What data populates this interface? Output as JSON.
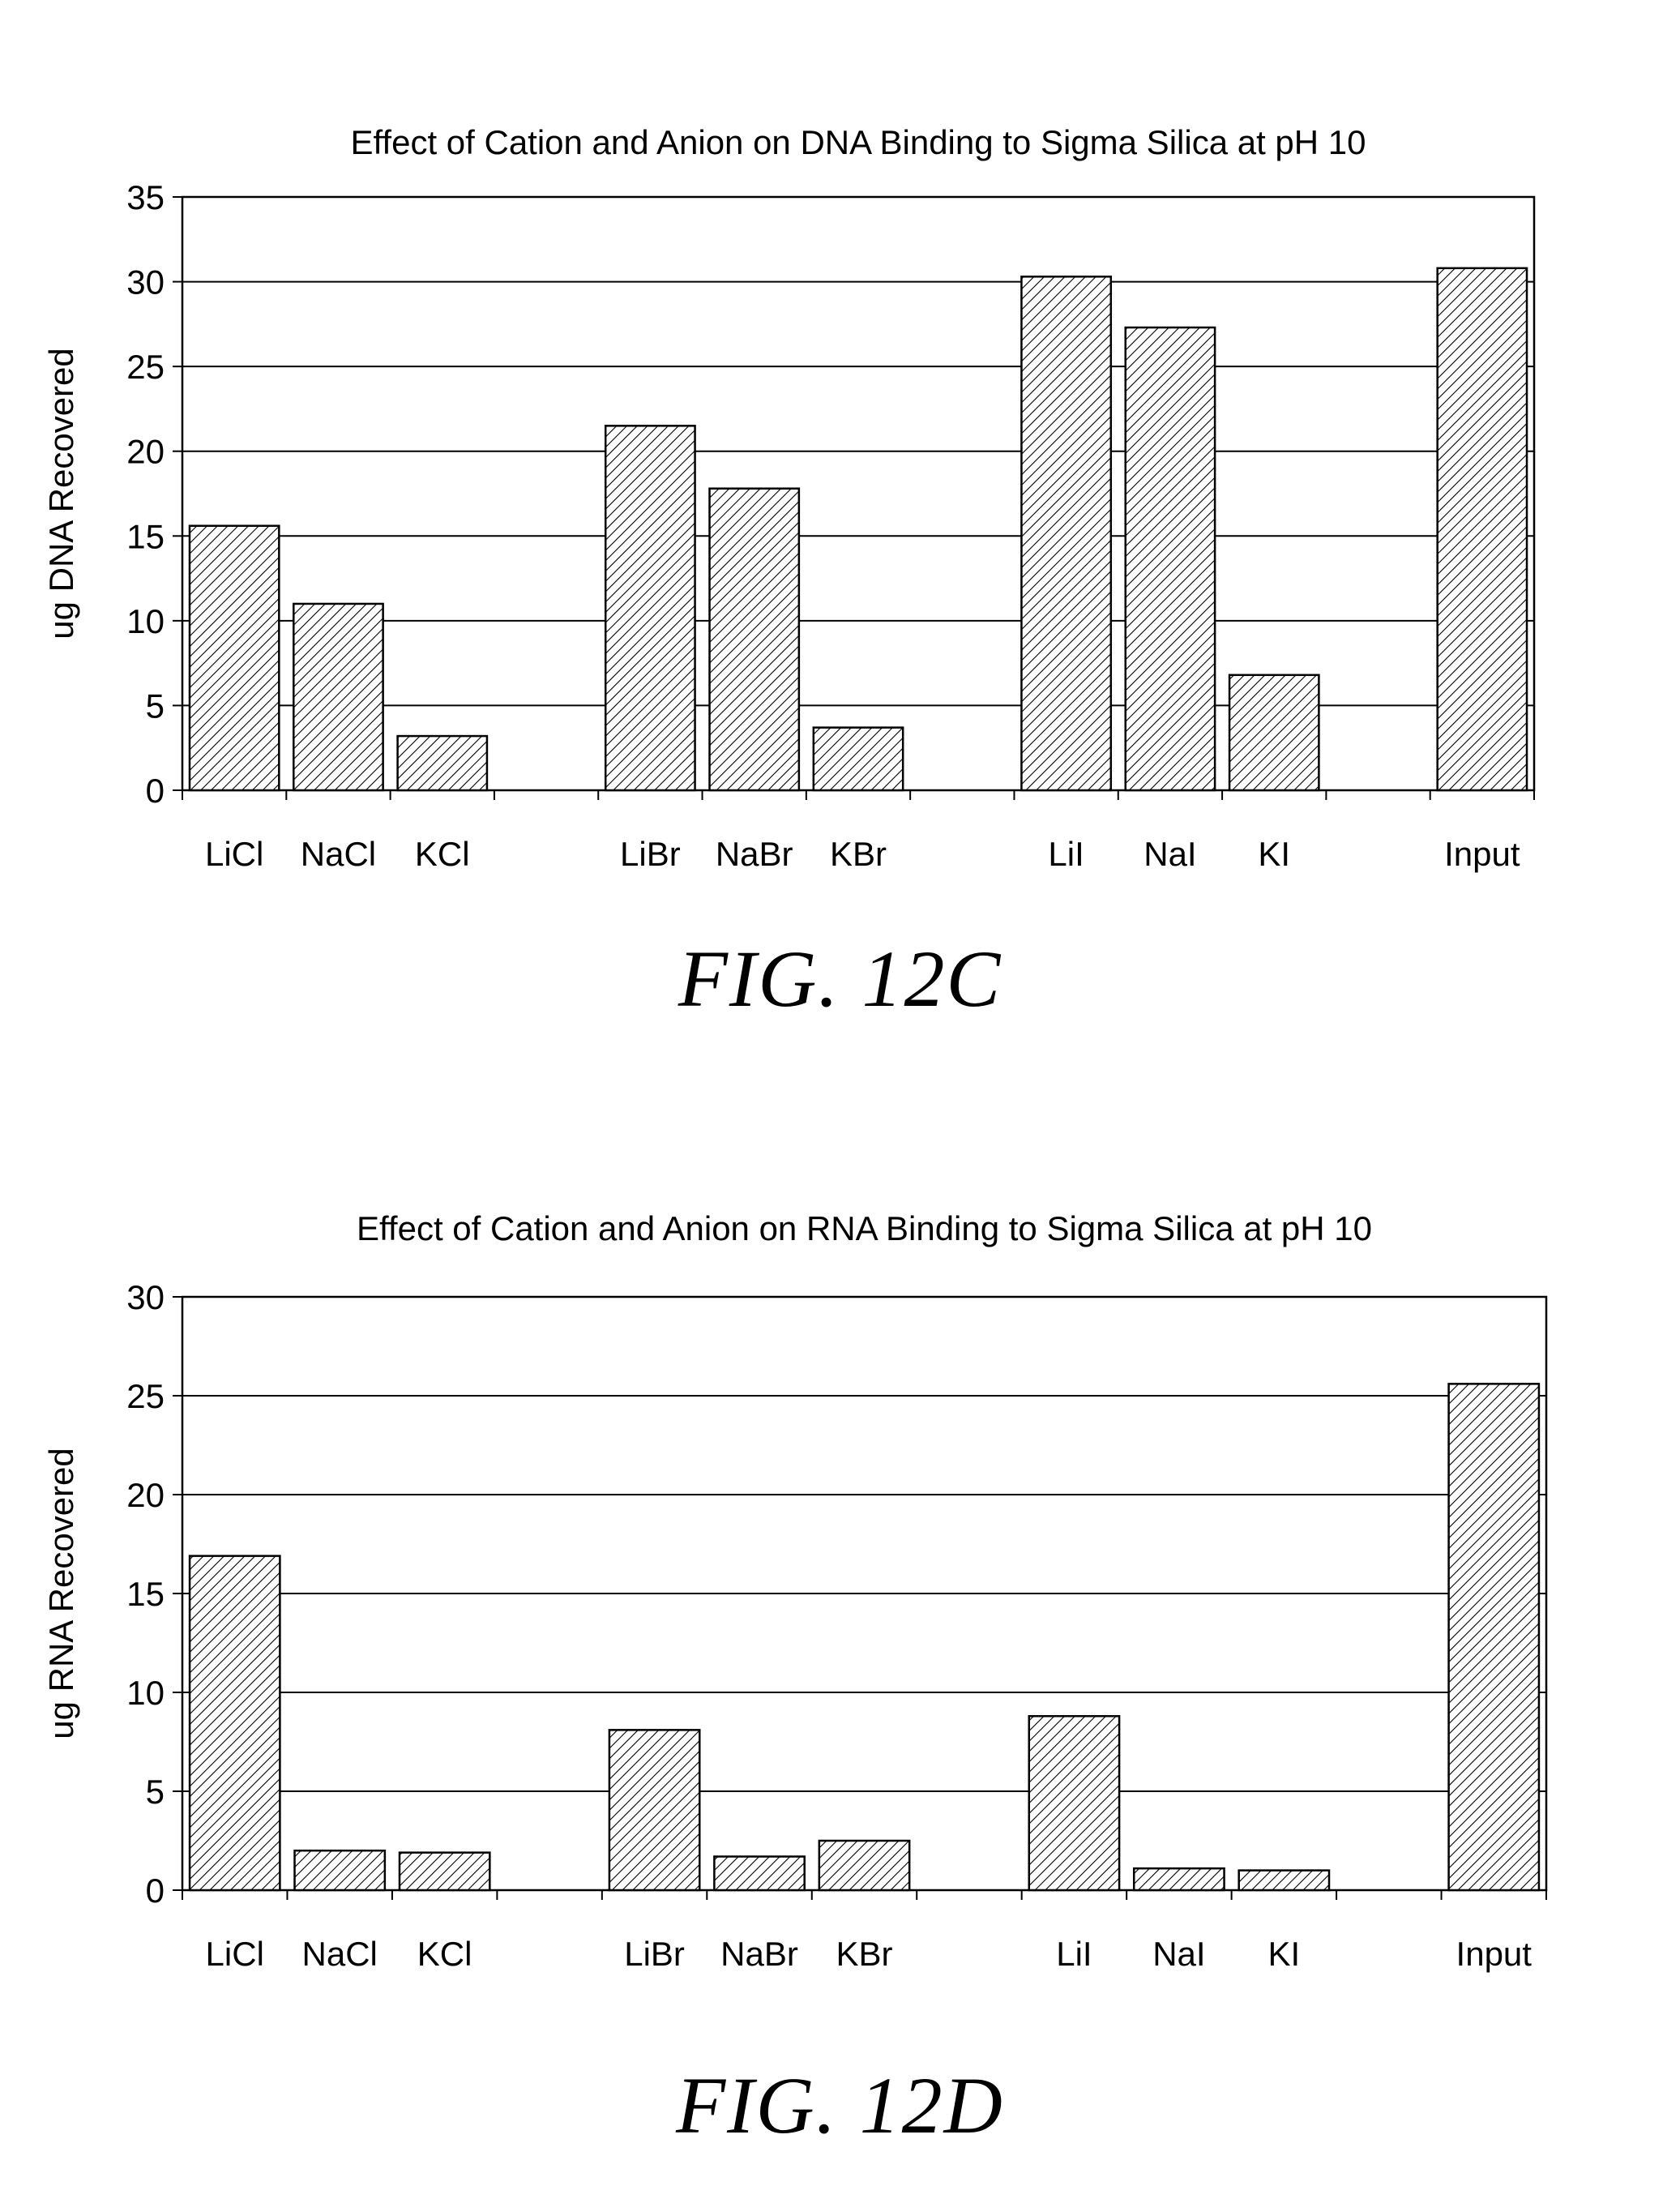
{
  "figures": [
    {
      "caption": "FIG. 12C",
      "chart_data": {
        "type": "bar",
        "title": "Effect of Cation and Anion on DNA Binding to Sigma Silica at pH 10",
        "xlabel": "",
        "ylabel": "ug DNA Recovered",
        "ylim": [
          0,
          35
        ],
        "yticks": [
          "0",
          "5",
          "10",
          "15",
          "20",
          "25",
          "30",
          "35"
        ],
        "grid": true,
        "fill": "diagonal-hatch",
        "categories": [
          "LiCl",
          "NaCl",
          "KCl",
          "",
          "LiBr",
          "NaBr",
          "KBr",
          "",
          "LiI",
          "NaI",
          "KI",
          "",
          "Input"
        ],
        "values": [
          15.6,
          11.0,
          3.2,
          null,
          21.5,
          17.8,
          3.7,
          null,
          30.3,
          27.3,
          6.8,
          null,
          30.8
        ]
      }
    },
    {
      "caption": "FIG. 12D",
      "chart_data": {
        "type": "bar",
        "title": "Effect of Cation and Anion on RNA Binding to Sigma Silica at pH 10",
        "xlabel": "",
        "ylabel": "ug RNA Recovered",
        "ylim": [
          0,
          30
        ],
        "yticks": [
          "0",
          "5",
          "10",
          "15",
          "20",
          "25",
          "30"
        ],
        "grid": true,
        "fill": "diagonal-hatch",
        "categories": [
          "LiCl",
          "NaCl",
          "KCl",
          "",
          "LiBr",
          "NaBr",
          "KBr",
          "",
          "LiI",
          "NaI",
          "KI",
          "",
          "Input"
        ],
        "values": [
          16.9,
          2.0,
          1.9,
          null,
          8.1,
          1.7,
          2.5,
          null,
          8.8,
          1.1,
          1.0,
          null,
          25.6
        ]
      }
    }
  ]
}
